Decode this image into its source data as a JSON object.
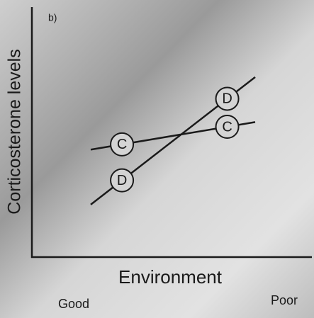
{
  "chart_data": {
    "type": "line",
    "subtitle": "b)",
    "y_label": "Corticosterone levels",
    "x_label": "Environment",
    "categories": [
      "Good",
      "Poor"
    ],
    "series": [
      {
        "name": "C",
        "color": "#1a1a1a",
        "values": [
          43,
          54
        ]
      },
      {
        "name": "D",
        "color": "#1a1a1a",
        "values": [
          21,
          72
        ]
      }
    ],
    "ylim": [
      0,
      100
    ]
  }
}
